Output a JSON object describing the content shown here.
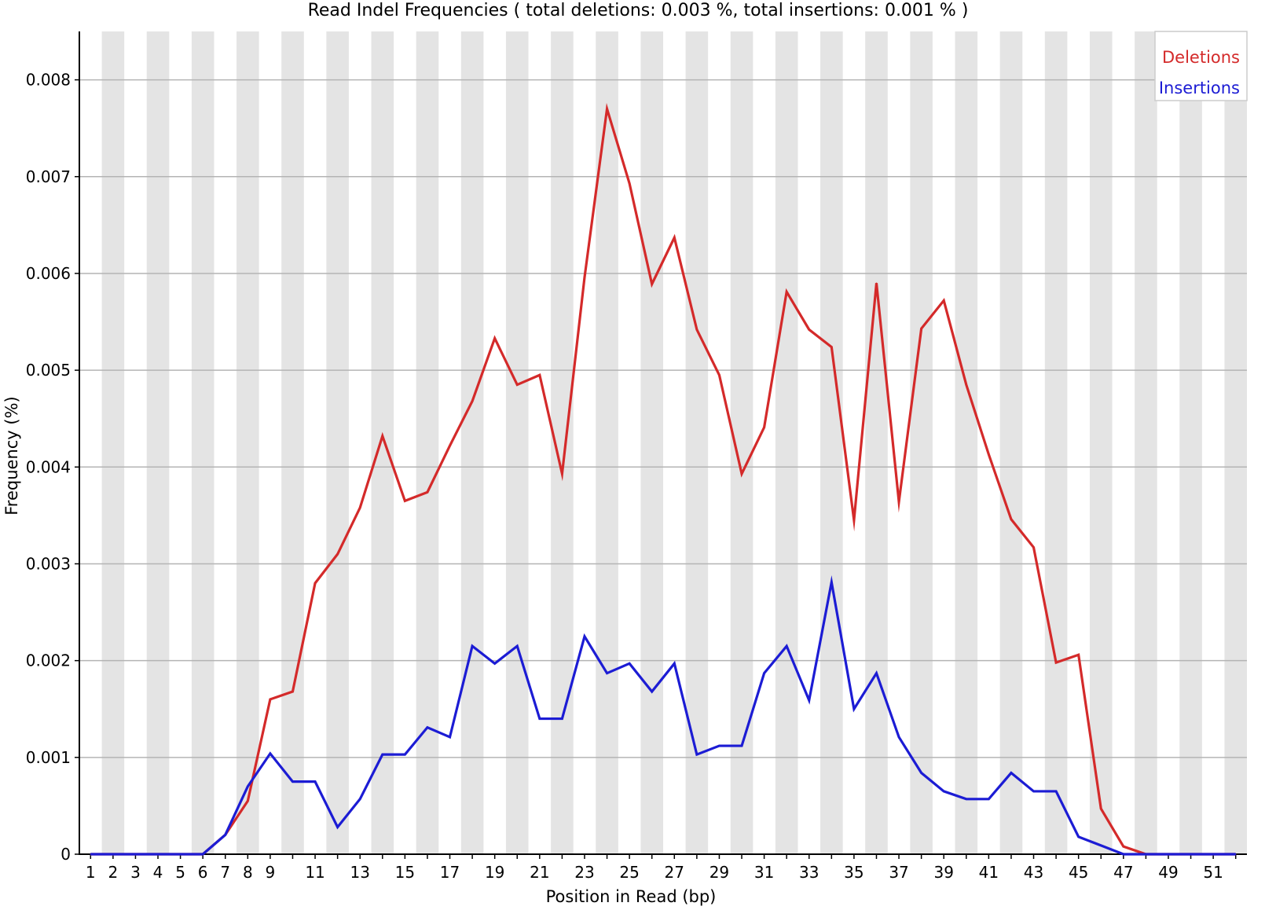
{
  "chart_data": {
    "type": "line",
    "title": "Read Indel Frequencies ( total deletions: 0.003 %, total insertions: 0.001 % )",
    "xlabel": "Position in Read (bp)",
    "ylabel": "Frequency (%)",
    "ylim": [
      0,
      0.0085
    ],
    "yticks": [
      "0",
      "0.001",
      "0.002",
      "0.003",
      "0.004",
      "0.005",
      "0.006",
      "0.007",
      "0.008"
    ],
    "x": [
      1,
      2,
      3,
      4,
      5,
      6,
      7,
      8,
      9,
      10,
      11,
      12,
      13,
      14,
      15,
      16,
      17,
      18,
      19,
      20,
      21,
      22,
      23,
      24,
      25,
      26,
      27,
      28,
      29,
      30,
      31,
      32,
      33,
      34,
      35,
      36,
      37,
      38,
      39,
      40,
      41,
      42,
      43,
      44,
      45,
      46,
      47,
      48,
      49,
      50,
      51,
      52
    ],
    "xtick_labels": [
      "1",
      "2",
      "3",
      "4",
      "5",
      "6",
      "7",
      "8",
      "9",
      "11",
      "13",
      "15",
      "17",
      "19",
      "21",
      "23",
      "25",
      "27",
      "29",
      "31",
      "33",
      "35",
      "37",
      "39",
      "41",
      "43",
      "45",
      "47",
      "49",
      "51"
    ],
    "grid": true,
    "legend_position": "top-right",
    "series": [
      {
        "name": "Deletions",
        "color": "#d42a2a",
        "values": [
          0,
          0,
          0,
          0,
          0,
          0,
          0.0002,
          0.00055,
          0.0016,
          0.00168,
          0.0028,
          0.0031,
          0.00358,
          0.00432,
          0.00365,
          0.00374,
          0.00422,
          0.00468,
          0.00533,
          0.00485,
          0.00495,
          0.00393,
          0.00596,
          0.0077,
          0.00693,
          0.00589,
          0.00637,
          0.00542,
          0.00495,
          0.00393,
          0.00441,
          0.00581,
          0.00542,
          0.00524,
          0.00345,
          0.0059,
          0.00364,
          0.00543,
          0.00572,
          0.00485,
          0.00413,
          0.00346,
          0.00317,
          0.00198,
          0.00206,
          0.00047,
          8e-05,
          0,
          0,
          0,
          0,
          0
        ]
      },
      {
        "name": "Insertions",
        "color": "#1c1cd4",
        "values": [
          0,
          0,
          0,
          0,
          0,
          0,
          0.0002,
          0.0007,
          0.00104,
          0.00075,
          0.00075,
          0.00028,
          0.00057,
          0.00103,
          0.00103,
          0.00131,
          0.00121,
          0.00215,
          0.00197,
          0.00215,
          0.0014,
          0.0014,
          0.00225,
          0.00187,
          0.00197,
          0.00168,
          0.00197,
          0.00103,
          0.00112,
          0.00112,
          0.00187,
          0.00215,
          0.00159,
          0.00281,
          0.0015,
          0.00187,
          0.00121,
          0.00084,
          0.00065,
          0.00057,
          0.00057,
          0.00084,
          0.00065,
          0.00065,
          0.00018,
          9e-05,
          0,
          0,
          0,
          0,
          0,
          0
        ]
      }
    ]
  }
}
